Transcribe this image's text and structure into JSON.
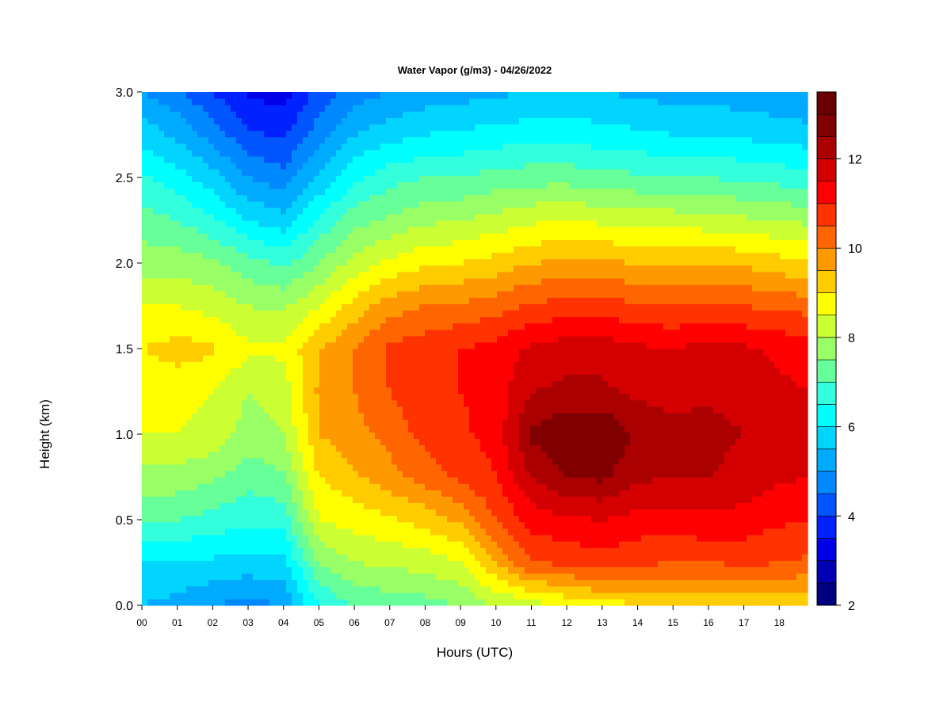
{
  "chart_data": {
    "type": "heatmap",
    "title": "Water Vapor (g/m3) - 04/26/2022",
    "xlabel": "Hours (UTC)",
    "ylabel": "Height (km)",
    "xlim": [
      0,
      18.8
    ],
    "ylim": [
      0,
      3.0
    ],
    "x_ticks": [
      "00",
      "01",
      "02",
      "03",
      "04",
      "05",
      "06",
      "07",
      "08",
      "09",
      "10",
      "11",
      "12",
      "13",
      "14",
      "15",
      "16",
      "17",
      "18"
    ],
    "y_ticks": [
      "0.0",
      "0.5",
      "1.0",
      "1.5",
      "2.0",
      "2.5",
      "3.0"
    ],
    "colorbar": {
      "min": 2,
      "max": 13.5,
      "step": 0.5,
      "ticks": [
        "2",
        "4",
        "6",
        "8",
        "10",
        "12"
      ],
      "colors": [
        "#00007f",
        "#0000b2",
        "#0000e6",
        "#0022ff",
        "#0055ff",
        "#0088ff",
        "#00aaff",
        "#00d4ff",
        "#00ffff",
        "#33ffdd",
        "#66ff99",
        "#99ff66",
        "#ccff33",
        "#ffff00",
        "#ffcc00",
        "#ff9900",
        "#ff6600",
        "#ff3300",
        "#ff0000",
        "#d40000",
        "#aa0000",
        "#800000",
        "#6a0000"
      ]
    },
    "hours": [
      0,
      1,
      2,
      3,
      4,
      5,
      6,
      7,
      8,
      9,
      10,
      11,
      12,
      13,
      14,
      15,
      16,
      17,
      18,
      18.8
    ],
    "heights_km": [
      0.0,
      0.25,
      0.5,
      0.75,
      1.0,
      1.25,
      1.5,
      1.75,
      2.0,
      2.25,
      2.5,
      2.75,
      3.0
    ],
    "values": [
      [
        5.5,
        6.0,
        7.0,
        7.8,
        8.5,
        8.7,
        9.0,
        8.5,
        7.8,
        7.2,
        6.6,
        5.8,
        5.0
      ],
      [
        5.3,
        6.0,
        7.0,
        7.8,
        8.5,
        8.7,
        9.2,
        8.5,
        7.8,
        7.0,
        6.2,
        5.4,
        4.6
      ],
      [
        5.0,
        5.9,
        6.8,
        7.6,
        8.3,
        8.5,
        9.1,
        8.3,
        7.6,
        6.6,
        5.7,
        4.8,
        4.0
      ],
      [
        4.8,
        5.8,
        6.6,
        7.2,
        7.8,
        8.0,
        8.6,
        8.0,
        7.2,
        6.0,
        5.0,
        4.1,
        3.4
      ],
      [
        5.0,
        5.9,
        6.7,
        7.4,
        8.0,
        8.2,
        8.6,
        7.9,
        6.9,
        5.7,
        4.7,
        3.9,
        3.3
      ],
      [
        6.5,
        7.5,
        8.5,
        9.0,
        9.5,
        9.6,
        9.5,
        8.5,
        7.5,
        6.6,
        5.6,
        4.8,
        4.2
      ],
      [
        7.0,
        8.0,
        8.7,
        9.4,
        9.8,
        10.0,
        10.0,
        9.2,
        8.2,
        7.3,
        6.4,
        5.5,
        4.8
      ],
      [
        7.2,
        8.1,
        8.9,
        9.8,
        10.2,
        10.5,
        10.6,
        9.8,
        8.6,
        7.6,
        6.8,
        5.8,
        5.0
      ],
      [
        7.3,
        8.2,
        9.2,
        10.2,
        10.7,
        10.8,
        10.8,
        10.0,
        8.9,
        7.9,
        7.0,
        6.0,
        5.2
      ],
      [
        7.5,
        8.5,
        9.6,
        10.6,
        10.9,
        11.0,
        11.0,
        10.1,
        9.0,
        8.0,
        7.0,
        6.1,
        5.3
      ],
      [
        8.0,
        9.5,
        10.5,
        11.0,
        11.2,
        11.2,
        11.2,
        10.3,
        9.2,
        8.2,
        7.2,
        6.2,
        5.4
      ],
      [
        8.2,
        10.5,
        11.2,
        12.0,
        12.6,
        12.0,
        11.6,
        10.6,
        9.5,
        8.4,
        7.3,
        6.3,
        5.5
      ],
      [
        8.6,
        10.6,
        11.4,
        12.5,
        13.0,
        12.1,
        11.8,
        10.7,
        9.6,
        8.5,
        7.3,
        6.3,
        5.6
      ],
      [
        8.8,
        10.8,
        11.5,
        12.6,
        13.0,
        12.1,
        11.8,
        10.7,
        9.6,
        8.4,
        7.2,
        6.2,
        5.5
      ],
      [
        8.9,
        10.6,
        11.3,
        12.1,
        12.4,
        11.9,
        11.6,
        10.6,
        9.5,
        8.3,
        7.1,
        6.1,
        5.4
      ],
      [
        9.0,
        10.5,
        11.3,
        12.0,
        12.2,
        11.8,
        11.5,
        10.5,
        9.4,
        8.3,
        7.0,
        6.0,
        5.3
      ],
      [
        9.0,
        10.5,
        11.4,
        12.0,
        12.2,
        11.9,
        11.7,
        10.6,
        9.5,
        8.2,
        7.0,
        6.0,
        5.3
      ],
      [
        9.0,
        10.6,
        11.3,
        11.8,
        12.0,
        11.8,
        11.6,
        10.5,
        9.4,
        8.1,
        6.9,
        5.9,
        5.2
      ],
      [
        9.1,
        10.5,
        11.1,
        11.6,
        11.8,
        11.6,
        11.4,
        10.4,
        9.2,
        8.0,
        6.8,
        5.8,
        5.1
      ],
      [
        9.1,
        10.4,
        11.0,
        11.5,
        11.7,
        11.5,
        11.3,
        10.3,
        9.1,
        7.9,
        6.7,
        5.7,
        5.0
      ]
    ]
  }
}
